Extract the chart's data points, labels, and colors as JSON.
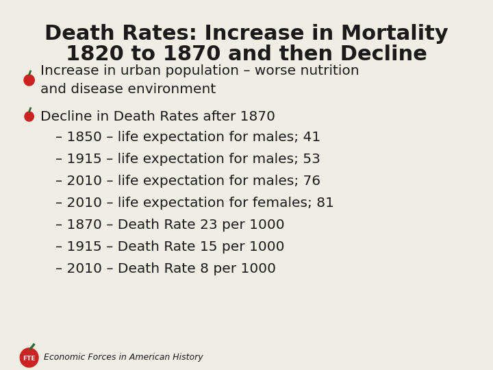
{
  "title_line1": "Death Rates: Increase in Mortality",
  "title_line2": "1820 to 1870 and then Decline",
  "bg_color": "#f0ede4",
  "title_color": "#1a1a1a",
  "text_color": "#1a1a1a",
  "bullet_color": "#cc2222",
  "title_fontsize": 22,
  "body_fontsize": 14.5,
  "bullet1": "Increase in urban population – worse nutrition\nand disease environment",
  "bullet2": "Decline in Death Rates after 1870",
  "sub_bullets": [
    "– 1850 – life expectation for males; 41",
    "– 1915 – life expectation for males; 53",
    "– 2010 – life expectation for males; 76",
    "– 2010 – life expectation for females; 81",
    "– 1870 – Death Rate 23 per 1000",
    "– 1915 – Death Rate 15 per 1000",
    "– 2010 – Death Rate 8 per 1000"
  ],
  "footer": "Economic Forces in American History"
}
